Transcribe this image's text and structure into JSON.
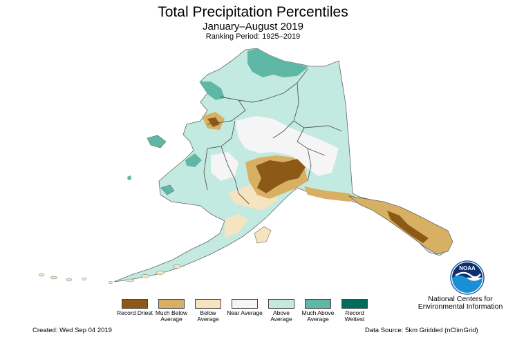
{
  "title": "Total Precipitation Percentiles",
  "subtitle": "January–August 2019",
  "ranking_period": "Ranking Period: 1925–2019",
  "legend": {
    "items": [
      {
        "label": "Record Driest",
        "color": "#8c5a16"
      },
      {
        "label": "Much Below Average",
        "color": "#d8b064"
      },
      {
        "label": "Below Average",
        "color": "#f6e4c0"
      },
      {
        "label": "Near Average",
        "color": "#f5f5f5"
      },
      {
        "label": "Above Average",
        "color": "#c3eae1"
      },
      {
        "label": "Much Above Average",
        "color": "#5fb7a6"
      },
      {
        "label": "Record Wettest",
        "color": "#016c59"
      }
    ]
  },
  "logo": {
    "text": "NOAA",
    "icon": "noaa-logo"
  },
  "agency_name": "National Centers for Environmental Information",
  "created": "Created: Wed Sep 04 2019",
  "data_source": "Data Source: 5km Gridded (nClimGrid)",
  "colors": {
    "record_driest": "#8c5a16",
    "much_below": "#d8b064",
    "below": "#f6e4c0",
    "near": "#f5f5f5",
    "above": "#c3eae1",
    "much_above": "#5fb7a6",
    "record_wettest": "#016c59",
    "boundary": "#555555"
  }
}
